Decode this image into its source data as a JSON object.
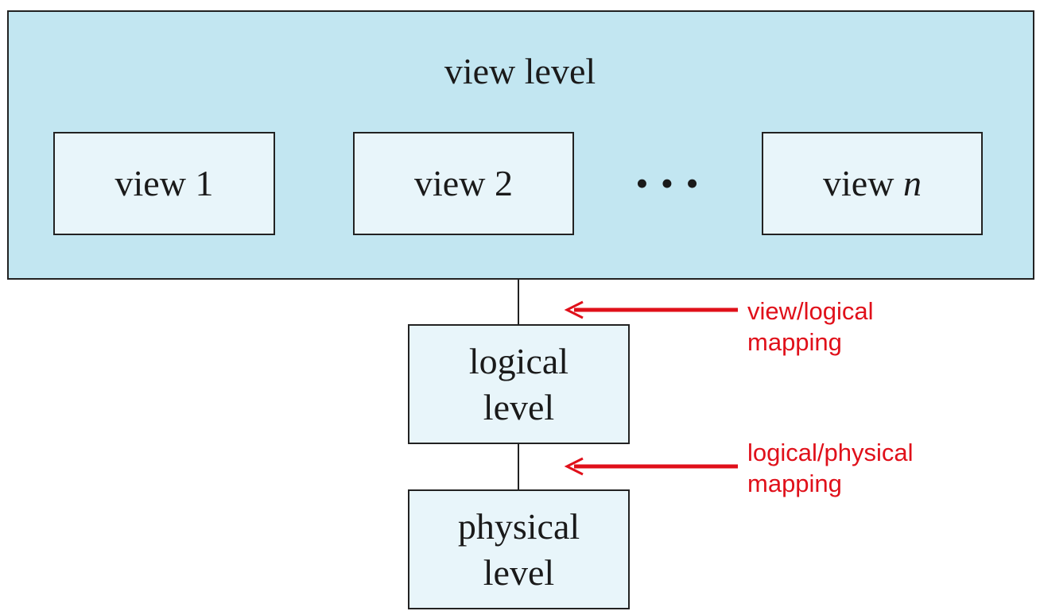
{
  "diagram": {
    "view_level": {
      "title": "view level",
      "views": [
        {
          "prefix": "view ",
          "index": "1"
        },
        {
          "prefix": "view ",
          "index": "2"
        },
        {
          "prefix": "view ",
          "index": "n"
        }
      ],
      "ellipsis": "• • •"
    },
    "logical_level": {
      "line1": "logical",
      "line2": "level"
    },
    "physical_level": {
      "line1": "physical",
      "line2": "level"
    },
    "annotations": [
      {
        "line1": "view/logical",
        "line2": "mapping"
      },
      {
        "line1": "logical/physical",
        "line2": "mapping"
      }
    ],
    "colors": {
      "outer_fill": "#c2e6f1",
      "inner_fill": "#e8f5fa",
      "border": "#222222",
      "annotation": "#e0101a"
    }
  }
}
